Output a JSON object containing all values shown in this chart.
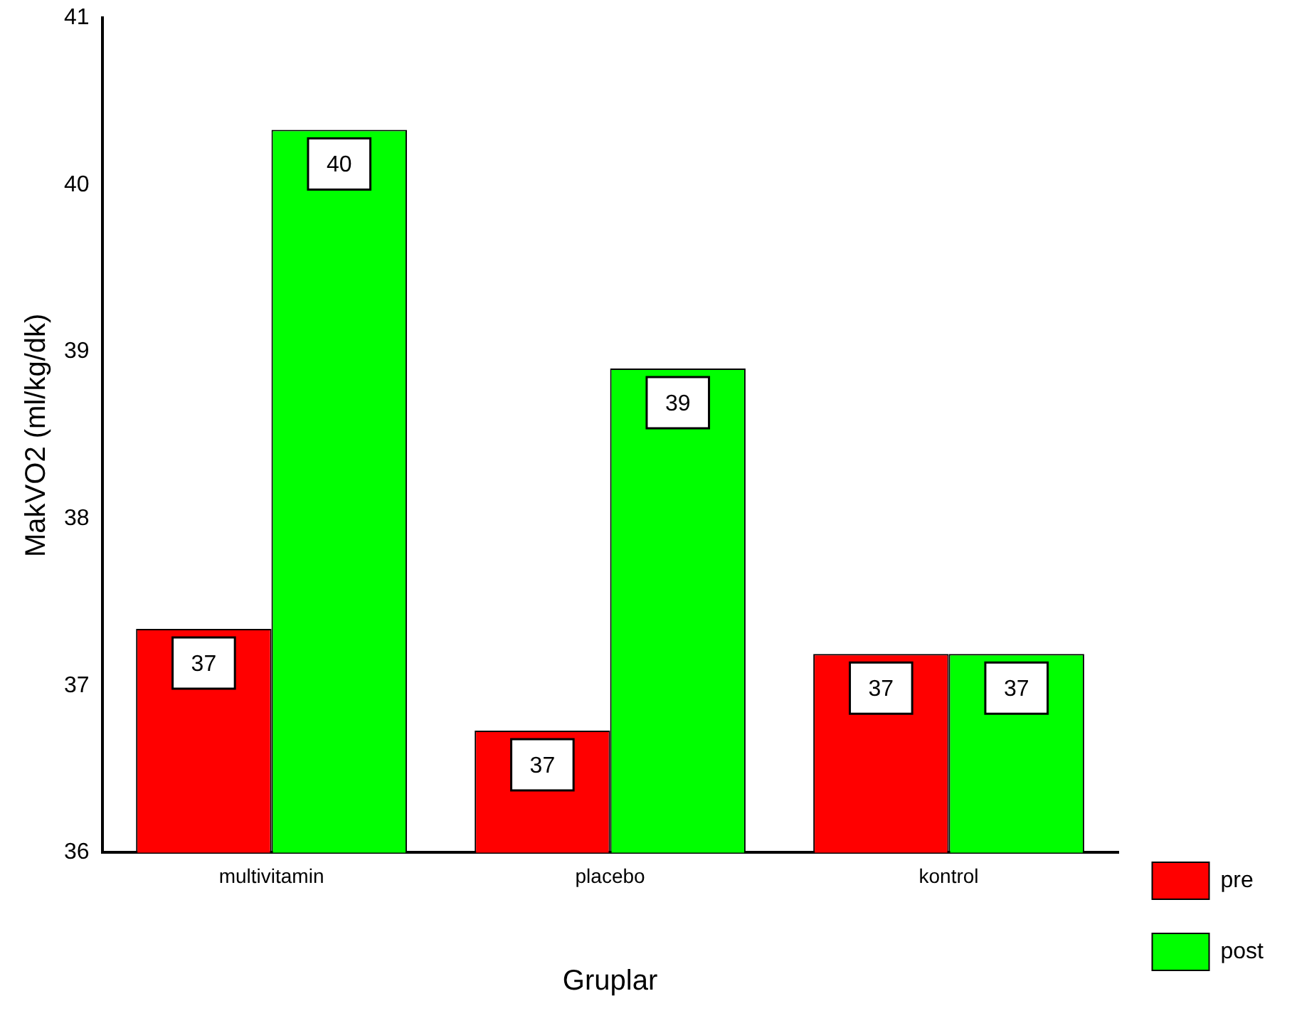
{
  "chart_data": {
    "type": "bar",
    "xlabel": "Gruplar",
    "ylabel": "MakVO2 (ml/kg/dk)",
    "categories": [
      "multivitamin",
      "placebo",
      "kontrol"
    ],
    "series": [
      {
        "name": "pre",
        "color": "#ff0000",
        "values": [
          37.34,
          36.73,
          37.19
        ],
        "value_labels": [
          "37",
          "37",
          "37"
        ]
      },
      {
        "name": "post",
        "color": "#00ff00",
        "values": [
          40.33,
          38.9,
          37.19
        ],
        "value_labels": [
          "40",
          "39",
          "37"
        ]
      }
    ],
    "ylim": [
      36,
      41
    ],
    "yticks": [
      36,
      37,
      38,
      39,
      40,
      41
    ],
    "grid": false,
    "legend": "bottom right"
  }
}
